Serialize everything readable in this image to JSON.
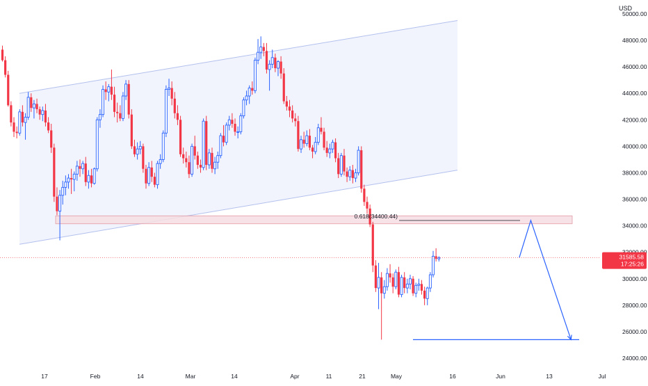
{
  "currency_label": "USD",
  "price_badge": {
    "price": "31585.58",
    "countdown": "17:25:26"
  },
  "fib_label": "0.618(34400.44)",
  "colors": {
    "up": "#2962ff",
    "down": "#f23645",
    "channel_fill": "#eef1fb",
    "channel_line": "#b3c0ee",
    "zone_fill": "#f6dfe3",
    "zone_line": "#e08a98",
    "projection": "#2962ff",
    "price_line": "#f23645",
    "axis_text": "#131722"
  },
  "chart_data": {
    "type": "candlestick",
    "ylabel": "USD",
    "ylim": [
      23500,
      51000
    ],
    "y_ticks": [
      "24000.00",
      "26000.00",
      "28000.00",
      "30000.00",
      "32000.00",
      "34000.00",
      "36000.00",
      "38000.00",
      "40000.00",
      "42000.00",
      "44000.00",
      "46000.00",
      "48000.00",
      "50000.00"
    ],
    "x_ticks": [
      "17",
      "Feb",
      "14",
      "Mar",
      "14",
      "Apr",
      "11",
      "21",
      "May",
      "16",
      "Jun",
      "13",
      "Jul"
    ],
    "last_price": 31585.58,
    "support_zone": [
      34150,
      34750
    ],
    "fib_level": 34400.44,
    "target_level": 25400,
    "channel_upper": [
      [
        0,
        44000
      ],
      [
        166,
        49500
      ]
    ],
    "channel_lower": [
      [
        0,
        32600
      ],
      [
        166,
        38200
      ]
    ],
    "projection_path": [
      [
        180,
        31600
      ],
      [
        184,
        34400
      ],
      [
        198,
        25400
      ]
    ],
    "candles": [
      [
        47300,
        47600,
        46400,
        46500
      ],
      [
        46500,
        46800,
        45200,
        45400
      ],
      [
        45400,
        45700,
        43000,
        43100
      ],
      [
        43100,
        43400,
        41500,
        41800
      ],
      [
        41800,
        42200,
        40700,
        41100
      ],
      [
        41100,
        41500,
        40600,
        41000
      ],
      [
        41000,
        42800,
        40800,
        42600
      ],
      [
        42600,
        43100,
        41500,
        41800
      ],
      [
        41800,
        42500,
        40500,
        42200
      ],
      [
        42200,
        44100,
        42000,
        43700
      ],
      [
        43700,
        44000,
        42600,
        42900
      ],
      [
        42900,
        43500,
        42100,
        43200
      ],
      [
        43200,
        43600,
        42500,
        42800
      ],
      [
        42800,
        43000,
        42000,
        42400
      ],
      [
        42400,
        43000,
        41900,
        42700
      ],
      [
        42700,
        43200,
        41500,
        41800
      ],
      [
        41800,
        42200,
        41000,
        41200
      ],
      [
        41200,
        41700,
        39500,
        39900
      ],
      [
        39900,
        40200,
        35800,
        36200
      ],
      [
        36200,
        36900,
        34800,
        35100
      ],
      [
        35100,
        36700,
        32900,
        36300
      ],
      [
        36300,
        37400,
        35600,
        36900
      ],
      [
        36900,
        37800,
        36300,
        37300
      ],
      [
        37300,
        37900,
        36800,
        37600
      ],
      [
        37600,
        38300,
        36400,
        37500
      ],
      [
        37500,
        38100,
        36600,
        37900
      ],
      [
        37900,
        38900,
        37400,
        38500
      ],
      [
        38500,
        39000,
        37700,
        38300
      ],
      [
        38300,
        38900,
        37900,
        38700
      ],
      [
        38700,
        39200,
        37000,
        37300
      ],
      [
        37300,
        38200,
        36800,
        37800
      ],
      [
        37800,
        38300,
        36900,
        37200
      ],
      [
        37200,
        38400,
        37100,
        38300
      ],
      [
        38300,
        42200,
        38100,
        42000
      ],
      [
        42000,
        42800,
        41400,
        42400
      ],
      [
        42400,
        44600,
        42200,
        44300
      ],
      [
        44300,
        44900,
        43500,
        44100
      ],
      [
        44100,
        44700,
        43400,
        44500
      ],
      [
        44500,
        45800,
        43500,
        43900
      ],
      [
        43900,
        44500,
        42200,
        42600
      ],
      [
        42600,
        43300,
        41800,
        42500
      ],
      [
        42500,
        43100,
        41900,
        42100
      ],
      [
        42100,
        44100,
        41900,
        43800
      ],
      [
        43800,
        45000,
        43500,
        44700
      ],
      [
        44700,
        45000,
        42100,
        42400
      ],
      [
        42400,
        42800,
        39800,
        40000
      ],
      [
        40000,
        40500,
        39200,
        39400
      ],
      [
        39400,
        40300,
        39000,
        39800
      ],
      [
        39800,
        40400,
        39400,
        40000
      ],
      [
        40000,
        40200,
        38000,
        38300
      ],
      [
        38300,
        38600,
        36800,
        37200
      ],
      [
        37200,
        38800,
        37000,
        38400
      ],
      [
        38400,
        38900,
        37300,
        37700
      ],
      [
        37700,
        38000,
        36900,
        37100
      ],
      [
        37100,
        38900,
        36800,
        38700
      ],
      [
        38700,
        39400,
        38300,
        39000
      ],
      [
        39000,
        41200,
        38800,
        41000
      ],
      [
        41000,
        44600,
        40700,
        44300
      ],
      [
        44300,
        45100,
        43800,
        44400
      ],
      [
        44400,
        44900,
        43100,
        43600
      ],
      [
        43600,
        44100,
        42100,
        42500
      ],
      [
        42500,
        43100,
        41600,
        42000
      ],
      [
        42000,
        42300,
        39200,
        39400
      ],
      [
        39400,
        39900,
        38700,
        39100
      ],
      [
        39100,
        39600,
        38400,
        38800
      ],
      [
        38800,
        39300,
        37600,
        37900
      ],
      [
        37900,
        40200,
        37700,
        40000
      ],
      [
        40000,
        40800,
        39000,
        39300
      ],
      [
        39300,
        39600,
        38300,
        38600
      ],
      [
        38600,
        39000,
        38000,
        38400
      ],
      [
        38400,
        42100,
        38200,
        41900
      ],
      [
        41900,
        42300,
        38200,
        38600
      ],
      [
        38600,
        39800,
        38300,
        39500
      ],
      [
        39500,
        39900,
        38000,
        38300
      ],
      [
        38300,
        39200,
        37900,
        38800
      ],
      [
        38800,
        39600,
        38300,
        39300
      ],
      [
        39300,
        41000,
        39100,
        40800
      ],
      [
        40800,
        41600,
        40000,
        40300
      ],
      [
        40300,
        41800,
        40100,
        41600
      ],
      [
        41600,
        42300,
        41200,
        42000
      ],
      [
        42000,
        42500,
        41400,
        41700
      ],
      [
        41700,
        42100,
        40800,
        41100
      ],
      [
        41100,
        41500,
        40600,
        41100
      ],
      [
        41100,
        42500,
        40900,
        42300
      ],
      [
        42300,
        43700,
        42100,
        43500
      ],
      [
        43500,
        44200,
        43100,
        43800
      ],
      [
        43800,
        44600,
        43200,
        44400
      ],
      [
        44400,
        44900,
        43900,
        44200
      ],
      [
        44200,
        46700,
        44000,
        46500
      ],
      [
        46500,
        48100,
        46200,
        47100
      ],
      [
        47100,
        48300,
        46600,
        47500
      ],
      [
        47500,
        47800,
        46800,
        47200
      ],
      [
        47200,
        47800,
        45500,
        45800
      ],
      [
        45800,
        46500,
        44200,
        46200
      ],
      [
        46200,
        47300,
        45900,
        46700
      ],
      [
        46700,
        47000,
        45600,
        45900
      ],
      [
        45900,
        46500,
        45300,
        46400
      ],
      [
        46400,
        46800,
        45100,
        45500
      ],
      [
        45500,
        45900,
        43200,
        43400
      ],
      [
        43400,
        43800,
        42700,
        43000
      ],
      [
        43000,
        43500,
        42200,
        42700
      ],
      [
        42700,
        43100,
        41800,
        42100
      ],
      [
        42100,
        42500,
        41500,
        41900
      ],
      [
        41900,
        42300,
        39600,
        39800
      ],
      [
        39800,
        40800,
        39500,
        40500
      ],
      [
        40500,
        41100,
        39900,
        40200
      ],
      [
        40200,
        41200,
        40000,
        40800
      ],
      [
        40800,
        41300,
        39700,
        39900
      ],
      [
        39900,
        40100,
        39100,
        39600
      ],
      [
        39600,
        40700,
        39400,
        40300
      ],
      [
        40300,
        41700,
        40100,
        41400
      ],
      [
        41400,
        42200,
        40900,
        41100
      ],
      [
        41100,
        41400,
        39700,
        39900
      ],
      [
        39900,
        40400,
        39200,
        39500
      ],
      [
        39500,
        40200,
        39100,
        39800
      ],
      [
        39800,
        40500,
        39500,
        40300
      ],
      [
        40300,
        40600,
        38800,
        39100
      ],
      [
        39100,
        39500,
        37600,
        37900
      ],
      [
        37900,
        39500,
        37700,
        39300
      ],
      [
        39300,
        39800,
        37800,
        38100
      ],
      [
        38100,
        38400,
        37300,
        37700
      ],
      [
        37700,
        38500,
        37400,
        38200
      ],
      [
        38200,
        38600,
        37200,
        37600
      ],
      [
        37600,
        38300,
        37300,
        38000
      ],
      [
        38000,
        40000,
        37800,
        39700
      ],
      [
        39700,
        40000,
        36500,
        36800
      ],
      [
        36800,
        37100,
        35500,
        35800
      ],
      [
        35800,
        36200,
        34900,
        35300
      ],
      [
        35300,
        35600,
        33900,
        34100
      ],
      [
        34100,
        34300,
        30500,
        31000
      ],
      [
        31000,
        31400,
        29000,
        29300
      ],
      [
        29300,
        31200,
        27700,
        30100
      ],
      [
        30100,
        30500,
        25400,
        28900
      ],
      [
        28900,
        29900,
        28500,
        29400
      ],
      [
        29400,
        30800,
        29100,
        30400
      ],
      [
        30400,
        31100,
        29700,
        30100
      ],
      [
        30100,
        30400,
        28900,
        29400
      ],
      [
        29400,
        30700,
        29200,
        30500
      ],
      [
        30500,
        30900,
        28600,
        28800
      ],
      [
        28800,
        30300,
        28600,
        30100
      ],
      [
        30100,
        30500,
        28900,
        29300
      ],
      [
        29300,
        30000,
        28900,
        29600
      ],
      [
        29600,
        30300,
        29200,
        30000
      ],
      [
        30000,
        30200,
        28700,
        28900
      ],
      [
        28900,
        29700,
        28600,
        29500
      ],
      [
        29500,
        30000,
        29100,
        29600
      ],
      [
        29600,
        29900,
        28800,
        29100
      ],
      [
        29100,
        29400,
        28000,
        28500
      ],
      [
        28500,
        29400,
        28000,
        29300
      ],
      [
        29300,
        30500,
        29000,
        30300
      ],
      [
        30300,
        32100,
        30100,
        31700
      ],
      [
        31700,
        32300,
        31300,
        31500
      ],
      [
        31500,
        31700,
        31300,
        31586
      ]
    ]
  }
}
